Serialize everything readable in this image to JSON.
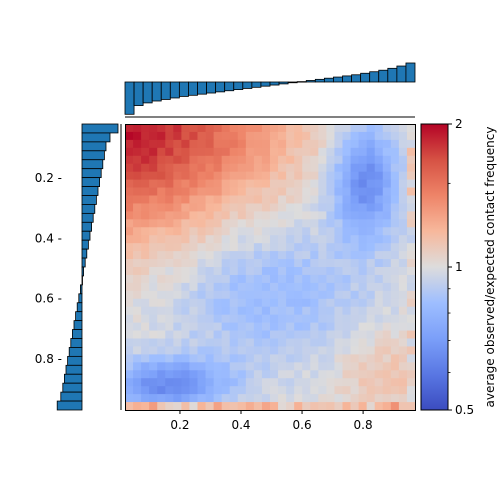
{
  "chart_data": [
    {
      "type": "heatmap",
      "colormap": "coolwarm",
      "grid_size": 36,
      "x_ticks": [
        "0.2",
        "0.4",
        "0.6",
        "0.8"
      ],
      "x_tick_values": [
        0.2,
        0.4,
        0.6,
        0.8
      ],
      "y_ticks": [
        "0.2 -",
        "0.4 -",
        "0.6 -",
        "0.8 -"
      ],
      "y_tick_values": [
        0.2,
        0.4,
        0.6,
        0.8
      ],
      "xlim": [
        0.02,
        0.97
      ],
      "ylim": [
        0.97,
        0.02
      ],
      "colorbar": {
        "label": "average observed/expected contact frequency",
        "ticks": [
          "2",
          "1",
          "0.5"
        ],
        "tick_values": [
          2,
          1,
          0.5
        ],
        "scale": "log",
        "range": [
          0.5,
          2
        ]
      },
      "description_of_pattern": {
        "high_corner": "top-left (both low)",
        "high_corner_value": 2.0,
        "low_regions": [
          "top-right (x~0.8, y~0.2)",
          "bottom-left (x~0.15, y~0.9)"
        ],
        "low_value": 0.5,
        "bottom-right_value": 1.05
      }
    },
    {
      "type": "bar",
      "orientation": "vertical",
      "position": "top-marginal",
      "bins": 32,
      "values": [
        -0.85,
        -0.62,
        -0.55,
        -0.5,
        -0.46,
        -0.42,
        -0.38,
        -0.35,
        -0.32,
        -0.29,
        -0.26,
        -0.23,
        -0.2,
        -0.17,
        -0.14,
        -0.11,
        -0.08,
        -0.05,
        -0.02,
        0.01,
        0.04,
        0.07,
        0.1,
        0.13,
        0.16,
        0.19,
        0.23,
        0.27,
        0.31,
        0.36,
        0.42,
        0.5
      ],
      "color": "#1f77b4"
    },
    {
      "type": "bar",
      "orientation": "horizontal",
      "position": "left-marginal",
      "bins": 32,
      "values": [
        0.9,
        0.7,
        0.6,
        0.56,
        0.52,
        0.48,
        0.44,
        0.4,
        0.36,
        0.32,
        0.28,
        0.24,
        0.2,
        0.16,
        0.12,
        0.08,
        0.04,
        0.0,
        -0.04,
        -0.08,
        -0.12,
        -0.16,
        -0.2,
        -0.24,
        -0.28,
        -0.32,
        -0.36,
        -0.4,
        -0.44,
        -0.48,
        -0.53,
        -0.62
      ],
      "color": "#1f77b4"
    }
  ]
}
